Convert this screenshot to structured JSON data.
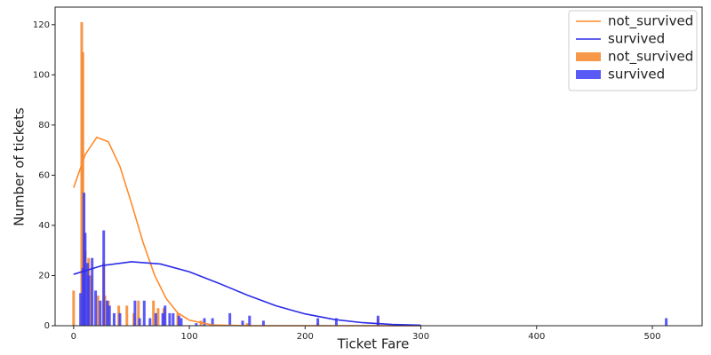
{
  "chart_data": {
    "type": "bar",
    "x_label": "Ticket Fare",
    "y_label": "Number of tickets",
    "xlim": [
      -16,
      543
    ],
    "ylim": [
      0,
      127
    ],
    "xticks": [
      0,
      100,
      200,
      300,
      400,
      500
    ],
    "yticks": [
      0,
      20,
      40,
      60,
      80,
      100,
      120
    ],
    "legend": "upper right",
    "series": [
      {
        "name": "not_survived",
        "type": "line",
        "color": "#ff8a2b",
        "x": [
          0,
          10,
          20,
          30,
          40,
          50,
          60,
          70,
          80,
          90,
          100,
          120,
          150,
          200,
          300
        ],
        "values": [
          55.0,
          68.2,
          75.1,
          73.3,
          63.5,
          48.8,
          33.2,
          20.1,
          10.8,
          5.1,
          2.2,
          0.3,
          0,
          0,
          0
        ]
      },
      {
        "name": "survived",
        "type": "line",
        "color": "#2b2be8",
        "x": [
          0,
          25,
          50,
          75,
          100,
          125,
          150,
          175,
          200,
          225,
          250,
          275,
          300
        ],
        "values": [
          20.5,
          24.0,
          25.5,
          24.6,
          21.5,
          17.0,
          12.2,
          7.9,
          4.7,
          2.5,
          1.2,
          0.5,
          0.2
        ]
      },
      {
        "name": "not_survived",
        "type": "bar",
        "color": "#f5852a",
        "x": [
          0,
          7,
          8,
          10,
          13,
          15,
          21,
          26,
          27,
          30,
          39,
          46,
          52,
          56,
          69,
          73,
          78,
          90,
          110,
          150,
          211,
          263
        ],
        "values": [
          14,
          121,
          109,
          30,
          27,
          20,
          12,
          25,
          12,
          10,
          8,
          8,
          5,
          10,
          10,
          7,
          7,
          5,
          2,
          1,
          1,
          3
        ]
      },
      {
        "name": "survived",
        "type": "bar",
        "color": "#3c3cf5",
        "x": [
          6,
          8,
          9,
          10,
          12,
          13,
          16,
          19,
          23,
          26,
          29,
          31,
          35,
          40,
          53,
          57,
          61,
          66,
          71,
          77,
          79,
          83,
          86,
          91,
          93,
          106,
          113,
          120,
          135,
          146,
          152,
          164,
          211,
          227,
          263,
          512
        ],
        "values": [
          13,
          23,
          53,
          37,
          25,
          20,
          27,
          14,
          10,
          38,
          10,
          8,
          5,
          5,
          10,
          3,
          10,
          3,
          5,
          5,
          8,
          5,
          5,
          4,
          3,
          1,
          3,
          3,
          5,
          2,
          4,
          2,
          3,
          3,
          4,
          3
        ]
      }
    ]
  }
}
